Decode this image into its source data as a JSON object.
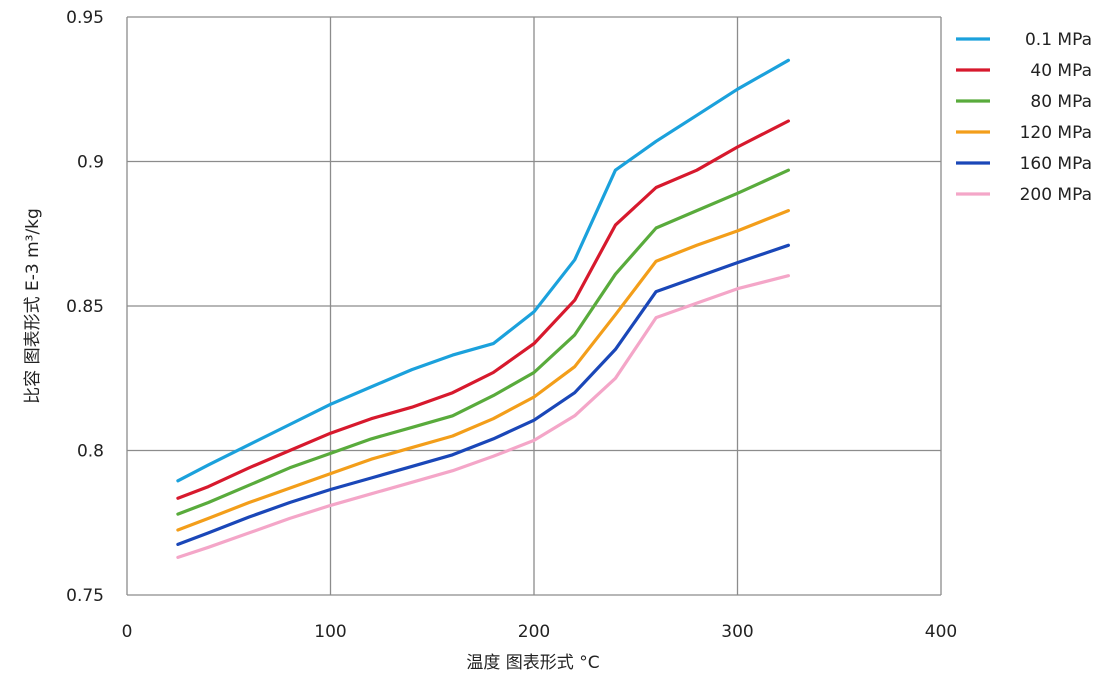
{
  "chart_data": {
    "type": "line",
    "xlabel": "温度 图表形式 °C",
    "ylabel": "比容 图表形式 E-3 m³/kg",
    "xlim": [
      0,
      400
    ],
    "ylim": [
      0.75,
      0.95
    ],
    "x_ticks": [
      "0",
      "100",
      "200",
      "300",
      "400"
    ],
    "y_ticks": [
      "0.75",
      "0.8",
      "0.85",
      "0.9",
      "0.95"
    ],
    "grid": true,
    "legend_position": "right",
    "x": [
      25,
      40,
      60,
      80,
      100,
      120,
      140,
      160,
      180,
      200,
      220,
      240,
      260,
      280,
      300,
      325
    ],
    "series": [
      {
        "name": "0.1 MPa",
        "color": "#1ba1dc",
        "values": [
          0.7895,
          0.795,
          0.802,
          0.809,
          0.816,
          0.822,
          0.828,
          0.833,
          0.837,
          0.848,
          0.866,
          0.897,
          0.907,
          0.916,
          0.925,
          0.935
        ]
      },
      {
        "name": "40 MPa",
        "color": "#d7192d",
        "values": [
          0.7835,
          0.7875,
          0.794,
          0.8,
          0.806,
          0.811,
          0.815,
          0.82,
          0.827,
          0.837,
          0.852,
          0.878,
          0.891,
          0.897,
          0.905,
          0.914
        ]
      },
      {
        "name": "80 MPa",
        "color": "#59ab3c",
        "values": [
          0.778,
          0.782,
          0.788,
          0.794,
          0.799,
          0.804,
          0.808,
          0.812,
          0.819,
          0.827,
          0.84,
          0.861,
          0.877,
          0.883,
          0.889,
          0.897
        ]
      },
      {
        "name": "120 MPa",
        "color": "#f39e1a",
        "values": [
          0.7725,
          0.7765,
          0.782,
          0.787,
          0.792,
          0.797,
          0.801,
          0.805,
          0.811,
          0.8185,
          0.829,
          0.847,
          0.8655,
          0.871,
          0.876,
          0.883
        ]
      },
      {
        "name": "160 MPa",
        "color": "#1a47b8",
        "values": [
          0.7675,
          0.7715,
          0.777,
          0.782,
          0.7865,
          0.7905,
          0.7945,
          0.7985,
          0.804,
          0.8105,
          0.82,
          0.835,
          0.855,
          0.86,
          0.865,
          0.871
        ]
      },
      {
        "name": "200 MPa",
        "color": "#f4a6c8",
        "values": [
          0.763,
          0.7665,
          0.7715,
          0.7765,
          0.781,
          0.785,
          0.789,
          0.793,
          0.798,
          0.8035,
          0.812,
          0.825,
          0.846,
          0.851,
          0.856,
          0.8605
        ]
      }
    ]
  }
}
